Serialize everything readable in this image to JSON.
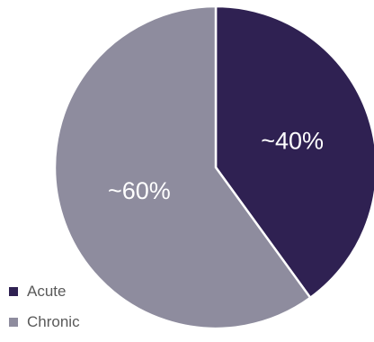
{
  "chart_data": {
    "type": "pie",
    "title": "",
    "start_angle_deg": 0,
    "direction": "clockwise",
    "legend_position": "bottom-left",
    "slices": [
      {
        "name": "Acute",
        "value": 40,
        "label": "~40%",
        "color": "#2f2152"
      },
      {
        "name": "Chronic",
        "value": 60,
        "label": "~60%",
        "color": "#8e8c9e"
      }
    ]
  }
}
